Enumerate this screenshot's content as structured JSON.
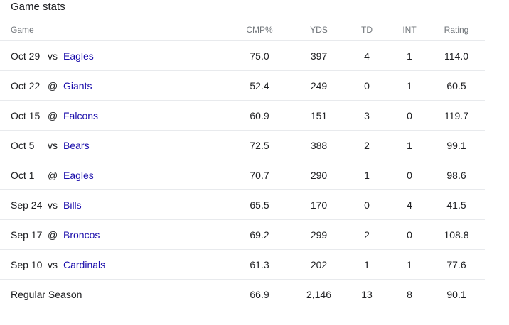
{
  "title": "Game stats",
  "columns": {
    "game": "Game",
    "cmp": "CMP%",
    "yds": "YDS",
    "td": "TD",
    "int": "INT",
    "rating": "Rating"
  },
  "rows": [
    {
      "date": "Oct 29",
      "loc": "vs",
      "opponent": "Eagles",
      "cmp": "75.0",
      "yds": "397",
      "td": "4",
      "int": "1",
      "rating": "114.0"
    },
    {
      "date": "Oct 22",
      "loc": "@",
      "opponent": "Giants",
      "cmp": "52.4",
      "yds": "249",
      "td": "0",
      "int": "1",
      "rating": "60.5"
    },
    {
      "date": "Oct 15",
      "loc": "@",
      "opponent": "Falcons",
      "cmp": "60.9",
      "yds": "151",
      "td": "3",
      "int": "0",
      "rating": "119.7"
    },
    {
      "date": "Oct 5",
      "loc": "vs",
      "opponent": "Bears",
      "cmp": "72.5",
      "yds": "388",
      "td": "2",
      "int": "1",
      "rating": "99.1"
    },
    {
      "date": "Oct 1",
      "loc": "@",
      "opponent": "Eagles",
      "cmp": "70.7",
      "yds": "290",
      "td": "1",
      "int": "0",
      "rating": "98.6"
    },
    {
      "date": "Sep 24",
      "loc": "vs",
      "opponent": "Bills",
      "cmp": "65.5",
      "yds": "170",
      "td": "0",
      "int": "4",
      "rating": "41.5"
    },
    {
      "date": "Sep 17",
      "loc": "@",
      "opponent": "Broncos",
      "cmp": "69.2",
      "yds": "299",
      "td": "2",
      "int": "0",
      "rating": "108.8"
    },
    {
      "date": "Sep 10",
      "loc": "vs",
      "opponent": "Cardinals",
      "cmp": "61.3",
      "yds": "202",
      "td": "1",
      "int": "1",
      "rating": "77.6"
    }
  ],
  "total": {
    "label": "Regular Season",
    "cmp": "66.9",
    "yds": "2,146",
    "td": "13",
    "int": "8",
    "rating": "90.1"
  },
  "colors": {
    "link": "#1a0dab",
    "text": "#202124",
    "header_text": "#70757a",
    "divider": "#e8eaed"
  }
}
